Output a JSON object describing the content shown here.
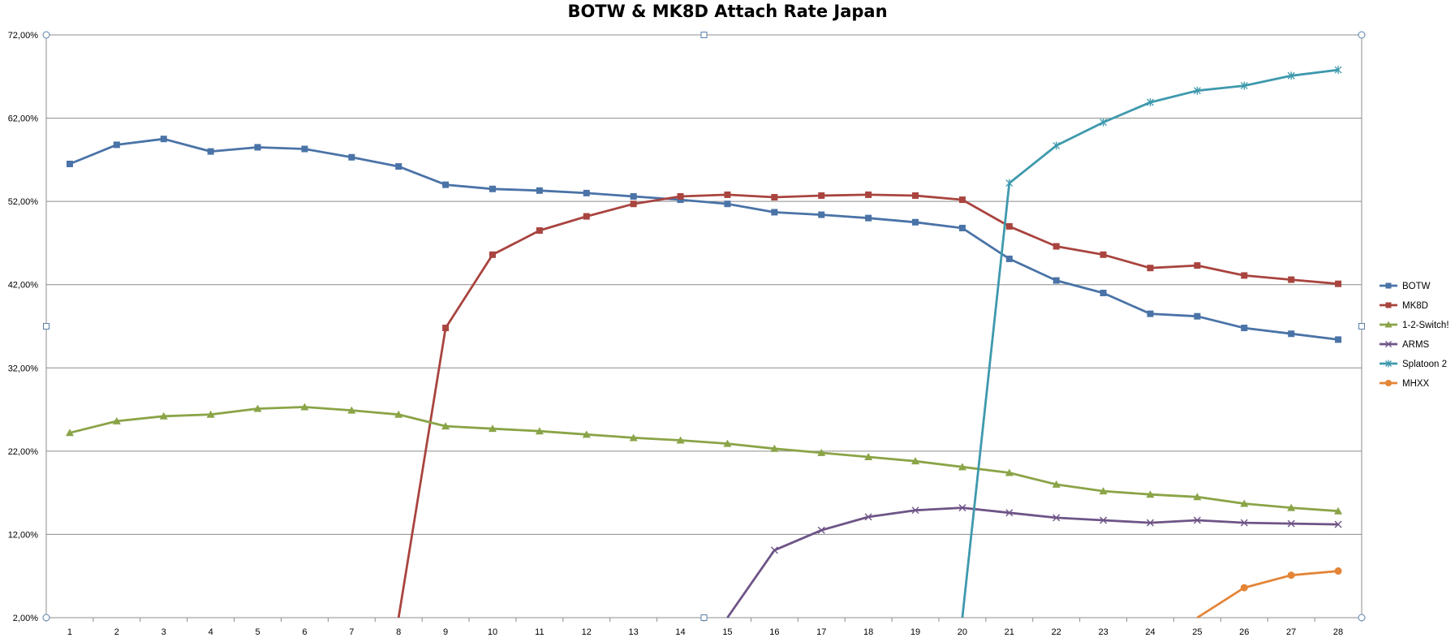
{
  "chart_data": {
    "type": "line",
    "title": "BOTW & MK8D Attach Rate Japan",
    "xlabel": "",
    "ylabel": "",
    "x": [
      1,
      2,
      3,
      4,
      5,
      6,
      7,
      8,
      9,
      10,
      11,
      12,
      13,
      14,
      15,
      16,
      17,
      18,
      19,
      20,
      21,
      22,
      23,
      24,
      25,
      26,
      27,
      28
    ],
    "ylim": [
      2,
      72
    ],
    "y_ticks": [
      2,
      12,
      22,
      32,
      42,
      52,
      62,
      72
    ],
    "y_tick_labels": [
      "2,00%",
      "12,00%",
      "22,00%",
      "32,00%",
      "42,00%",
      "52,00%",
      "62,00%",
      "72,00%"
    ],
    "grid": true,
    "legend_position": "right",
    "series": [
      {
        "name": "BOTW",
        "color": "#4a73a7",
        "marker": "square",
        "values": [
          56.5,
          58.8,
          59.5,
          58.0,
          58.5,
          58.3,
          57.3,
          56.2,
          54.0,
          53.5,
          53.3,
          53.0,
          52.6,
          52.2,
          51.7,
          50.7,
          50.4,
          50.0,
          49.5,
          48.8,
          45.1,
          42.5,
          41.0,
          38.5,
          38.2,
          36.8,
          36.1,
          35.4
        ]
      },
      {
        "name": "MK8D",
        "color": "#a9443f",
        "marker": "square",
        "values": [
          null,
          null,
          null,
          null,
          null,
          null,
          null,
          2.0,
          36.8,
          45.6,
          48.5,
          50.2,
          51.7,
          52.6,
          52.8,
          52.5,
          52.7,
          52.8,
          52.7,
          52.2,
          49.0,
          46.6,
          45.6,
          44.0,
          44.3,
          43.1,
          42.6,
          42.1
        ]
      },
      {
        "name": "1-2-Switch!",
        "color": "#8aa447",
        "marker": "triangle",
        "values": [
          24.2,
          25.6,
          26.2,
          26.4,
          27.1,
          27.3,
          26.9,
          26.4,
          25.0,
          24.7,
          24.4,
          24.0,
          23.6,
          23.3,
          22.9,
          22.3,
          21.8,
          21.3,
          20.8,
          20.1,
          19.4,
          18.0,
          17.2,
          16.8,
          16.5,
          15.7,
          15.2,
          14.8
        ]
      },
      {
        "name": "ARMS",
        "color": "#6e5487",
        "marker": "x",
        "values": [
          null,
          null,
          null,
          null,
          null,
          null,
          null,
          null,
          null,
          null,
          null,
          null,
          null,
          null,
          2.0,
          10.1,
          12.5,
          14.1,
          14.9,
          15.2,
          14.6,
          14.0,
          13.7,
          13.4,
          13.7,
          13.4,
          13.3,
          13.2
        ]
      },
      {
        "name": "Splatoon 2",
        "color": "#3e99ad",
        "marker": "asterisk",
        "values": [
          null,
          null,
          null,
          null,
          null,
          null,
          null,
          null,
          null,
          null,
          null,
          null,
          null,
          null,
          null,
          null,
          null,
          null,
          null,
          2.0,
          54.2,
          58.7,
          61.5,
          63.9,
          65.3,
          65.9,
          67.1,
          67.8
        ]
      },
      {
        "name": "MHXX",
        "color": "#e48437",
        "marker": "circle",
        "values": [
          null,
          null,
          null,
          null,
          null,
          null,
          null,
          null,
          null,
          null,
          null,
          null,
          null,
          null,
          null,
          null,
          null,
          null,
          null,
          null,
          null,
          null,
          null,
          null,
          2.0,
          5.6,
          7.1,
          7.6
        ]
      }
    ]
  }
}
